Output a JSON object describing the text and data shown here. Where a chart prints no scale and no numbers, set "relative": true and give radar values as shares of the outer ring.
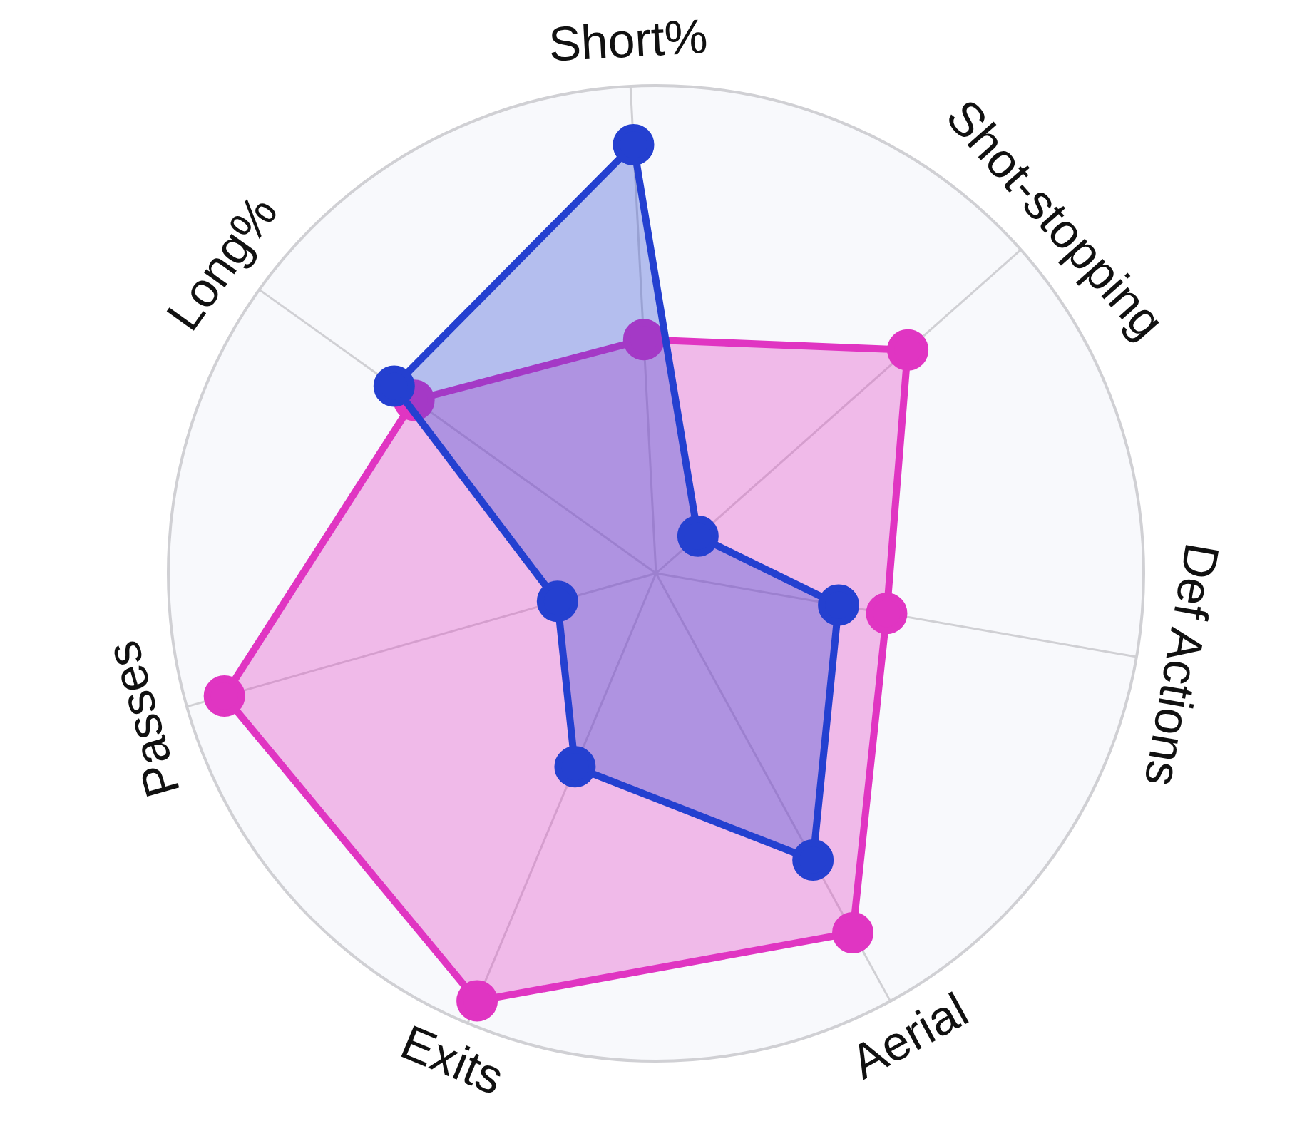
{
  "chart_data": {
    "type": "radar",
    "relative": true,
    "grid": true,
    "legend": false,
    "marker": "circle",
    "categories": [
      "Short%",
      "Shot-stopping",
      "Def Actions",
      "Aerial",
      "Exits",
      "Passes",
      "Long%"
    ],
    "series": [
      {
        "color": "#2440d0",
        "values": [
          0.88,
          0.115,
          0.38,
          0.67,
          0.43,
          0.21,
          0.66
        ]
      },
      {
        "color": "#e035c2",
        "values": [
          0.48,
          0.69,
          0.48,
          0.84,
          0.95,
          0.92,
          0.61
        ]
      }
    ]
  }
}
